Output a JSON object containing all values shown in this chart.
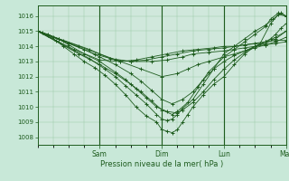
{
  "title": "Pression niveau de la mer( hPa )",
  "bg_color": "#c8e8d8",
  "plot_bg_color": "#d0e8dc",
  "line_color": "#1e5c1e",
  "grid_color": "#96c8a0",
  "tick_color": "#1e5c1e",
  "ylim": [
    1007.5,
    1016.7
  ],
  "yticks": [
    1008,
    1009,
    1010,
    1011,
    1012,
    1013,
    1014,
    1015,
    1016
  ],
  "day_labels": [
    "Sam",
    "Dim",
    "Lun",
    "Mar"
  ],
  "xlim_hours": [
    0,
    96
  ],
  "series": [
    [
      [
        0,
        1015.0
      ],
      [
        2,
        1014.9
      ],
      [
        4,
        1014.7
      ],
      [
        7,
        1014.4
      ],
      [
        10,
        1014.0
      ],
      [
        14,
        1013.5
      ],
      [
        18,
        1013.0
      ],
      [
        22,
        1012.6
      ],
      [
        26,
        1012.1
      ],
      [
        30,
        1011.5
      ],
      [
        34,
        1010.8
      ],
      [
        38,
        1010.0
      ],
      [
        42,
        1009.4
      ],
      [
        46,
        1009.0
      ],
      [
        48,
        1008.5
      ],
      [
        50,
        1008.4
      ],
      [
        52,
        1008.3
      ],
      [
        54,
        1008.5
      ],
      [
        56,
        1009.0
      ],
      [
        58,
        1009.5
      ],
      [
        60,
        1010.0
      ],
      [
        64,
        1010.8
      ],
      [
        68,
        1011.5
      ],
      [
        72,
        1012.0
      ],
      [
        76,
        1012.8
      ],
      [
        80,
        1013.5
      ],
      [
        84,
        1014.0
      ],
      [
        88,
        1014.3
      ],
      [
        90,
        1014.5
      ],
      [
        92,
        1014.8
      ],
      [
        94,
        1015.2
      ],
      [
        96,
        1015.5
      ]
    ],
    [
      [
        0,
        1015.0
      ],
      [
        4,
        1014.8
      ],
      [
        8,
        1014.5
      ],
      [
        12,
        1014.1
      ],
      [
        18,
        1013.5
      ],
      [
        24,
        1013.0
      ],
      [
        30,
        1012.3
      ],
      [
        34,
        1011.8
      ],
      [
        38,
        1011.2
      ],
      [
        42,
        1010.6
      ],
      [
        46,
        1010.0
      ],
      [
        50,
        1009.7
      ],
      [
        54,
        1009.6
      ],
      [
        56,
        1009.8
      ],
      [
        60,
        1010.3
      ],
      [
        64,
        1011.0
      ],
      [
        68,
        1011.8
      ],
      [
        72,
        1012.5
      ],
      [
        76,
        1013.1
      ],
      [
        80,
        1013.6
      ],
      [
        84,
        1014.0
      ],
      [
        88,
        1014.3
      ],
      [
        92,
        1014.6
      ],
      [
        96,
        1015.0
      ]
    ],
    [
      [
        0,
        1015.0
      ],
      [
        6,
        1014.6
      ],
      [
        12,
        1014.2
      ],
      [
        18,
        1013.8
      ],
      [
        24,
        1013.3
      ],
      [
        30,
        1012.8
      ],
      [
        36,
        1012.2
      ],
      [
        40,
        1011.7
      ],
      [
        44,
        1011.1
      ],
      [
        48,
        1010.5
      ],
      [
        52,
        1010.2
      ],
      [
        56,
        1010.5
      ],
      [
        60,
        1011.0
      ],
      [
        64,
        1011.8
      ],
      [
        68,
        1012.5
      ],
      [
        72,
        1013.0
      ],
      [
        76,
        1013.4
      ],
      [
        80,
        1013.7
      ],
      [
        84,
        1014.0
      ],
      [
        88,
        1014.2
      ],
      [
        92,
        1014.5
      ],
      [
        96,
        1015.0
      ]
    ],
    [
      [
        0,
        1015.0
      ],
      [
        8,
        1014.5
      ],
      [
        16,
        1014.0
      ],
      [
        24,
        1013.5
      ],
      [
        32,
        1013.0
      ],
      [
        40,
        1012.5
      ],
      [
        48,
        1012.0
      ],
      [
        54,
        1012.2
      ],
      [
        58,
        1012.5
      ],
      [
        62,
        1012.8
      ],
      [
        66,
        1013.0
      ],
      [
        72,
        1013.3
      ],
      [
        76,
        1013.5
      ],
      [
        80,
        1013.7
      ],
      [
        84,
        1013.9
      ],
      [
        88,
        1014.1
      ],
      [
        92,
        1014.3
      ],
      [
        96,
        1014.6
      ]
    ],
    [
      [
        0,
        1015.0
      ],
      [
        10,
        1014.4
      ],
      [
        20,
        1013.8
      ],
      [
        28,
        1013.2
      ],
      [
        36,
        1013.0
      ],
      [
        44,
        1013.0
      ],
      [
        50,
        1013.1
      ],
      [
        56,
        1013.3
      ],
      [
        60,
        1013.5
      ],
      [
        66,
        1013.6
      ],
      [
        72,
        1013.7
      ],
      [
        76,
        1013.8
      ],
      [
        80,
        1013.9
      ],
      [
        84,
        1014.0
      ],
      [
        88,
        1014.1
      ],
      [
        92,
        1014.2
      ],
      [
        96,
        1014.3
      ]
    ],
    [
      [
        0,
        1015.0
      ],
      [
        12,
        1014.2
      ],
      [
        22,
        1013.5
      ],
      [
        30,
        1013.1
      ],
      [
        36,
        1013.0
      ],
      [
        42,
        1013.1
      ],
      [
        48,
        1013.3
      ],
      [
        54,
        1013.5
      ],
      [
        60,
        1013.7
      ],
      [
        66,
        1013.8
      ],
      [
        72,
        1013.9
      ],
      [
        76,
        1014.0
      ],
      [
        80,
        1014.1
      ],
      [
        84,
        1014.2
      ],
      [
        88,
        1014.3
      ],
      [
        92,
        1014.4
      ],
      [
        96,
        1014.4
      ]
    ],
    [
      [
        0,
        1015.0
      ],
      [
        14,
        1013.8
      ],
      [
        24,
        1013.1
      ],
      [
        32,
        1013.0
      ],
      [
        38,
        1013.1
      ],
      [
        44,
        1013.3
      ],
      [
        50,
        1013.5
      ],
      [
        56,
        1013.7
      ],
      [
        62,
        1013.8
      ],
      [
        68,
        1013.9
      ],
      [
        72,
        1014.0
      ],
      [
        76,
        1014.0
      ],
      [
        80,
        1014.1
      ],
      [
        86,
        1014.2
      ],
      [
        90,
        1015.5
      ],
      [
        93,
        1016.1
      ],
      [
        96,
        1016.0
      ]
    ],
    [
      [
        0,
        1015.0
      ],
      [
        16,
        1013.5
      ],
      [
        24,
        1012.8
      ],
      [
        30,
        1012.2
      ],
      [
        36,
        1011.5
      ],
      [
        40,
        1011.0
      ],
      [
        44,
        1010.4
      ],
      [
        48,
        1009.8
      ],
      [
        52,
        1009.5
      ],
      [
        54,
        1009.7
      ],
      [
        58,
        1010.3
      ],
      [
        62,
        1011.3
      ],
      [
        66,
        1012.3
      ],
      [
        72,
        1013.3
      ],
      [
        76,
        1013.8
      ],
      [
        80,
        1014.3
      ],
      [
        84,
        1014.8
      ],
      [
        88,
        1015.3
      ],
      [
        90,
        1015.8
      ],
      [
        93,
        1016.2
      ],
      [
        96,
        1016.0
      ]
    ],
    [
      [
        0,
        1015.0
      ],
      [
        20,
        1013.2
      ],
      [
        26,
        1012.5
      ],
      [
        30,
        1012.0
      ],
      [
        34,
        1011.4
      ],
      [
        38,
        1010.8
      ],
      [
        42,
        1010.2
      ],
      [
        46,
        1009.5
      ],
      [
        48,
        1009.2
      ],
      [
        50,
        1009.1
      ],
      [
        52,
        1009.2
      ],
      [
        54,
        1009.5
      ],
      [
        56,
        1009.9
      ],
      [
        60,
        1010.5
      ],
      [
        64,
        1011.5
      ],
      [
        68,
        1012.5
      ],
      [
        72,
        1013.5
      ],
      [
        76,
        1014.0
      ],
      [
        80,
        1014.5
      ],
      [
        84,
        1015.0
      ],
      [
        88,
        1015.4
      ],
      [
        91,
        1015.8
      ],
      [
        94,
        1016.2
      ],
      [
        96,
        1016.0
      ]
    ]
  ]
}
